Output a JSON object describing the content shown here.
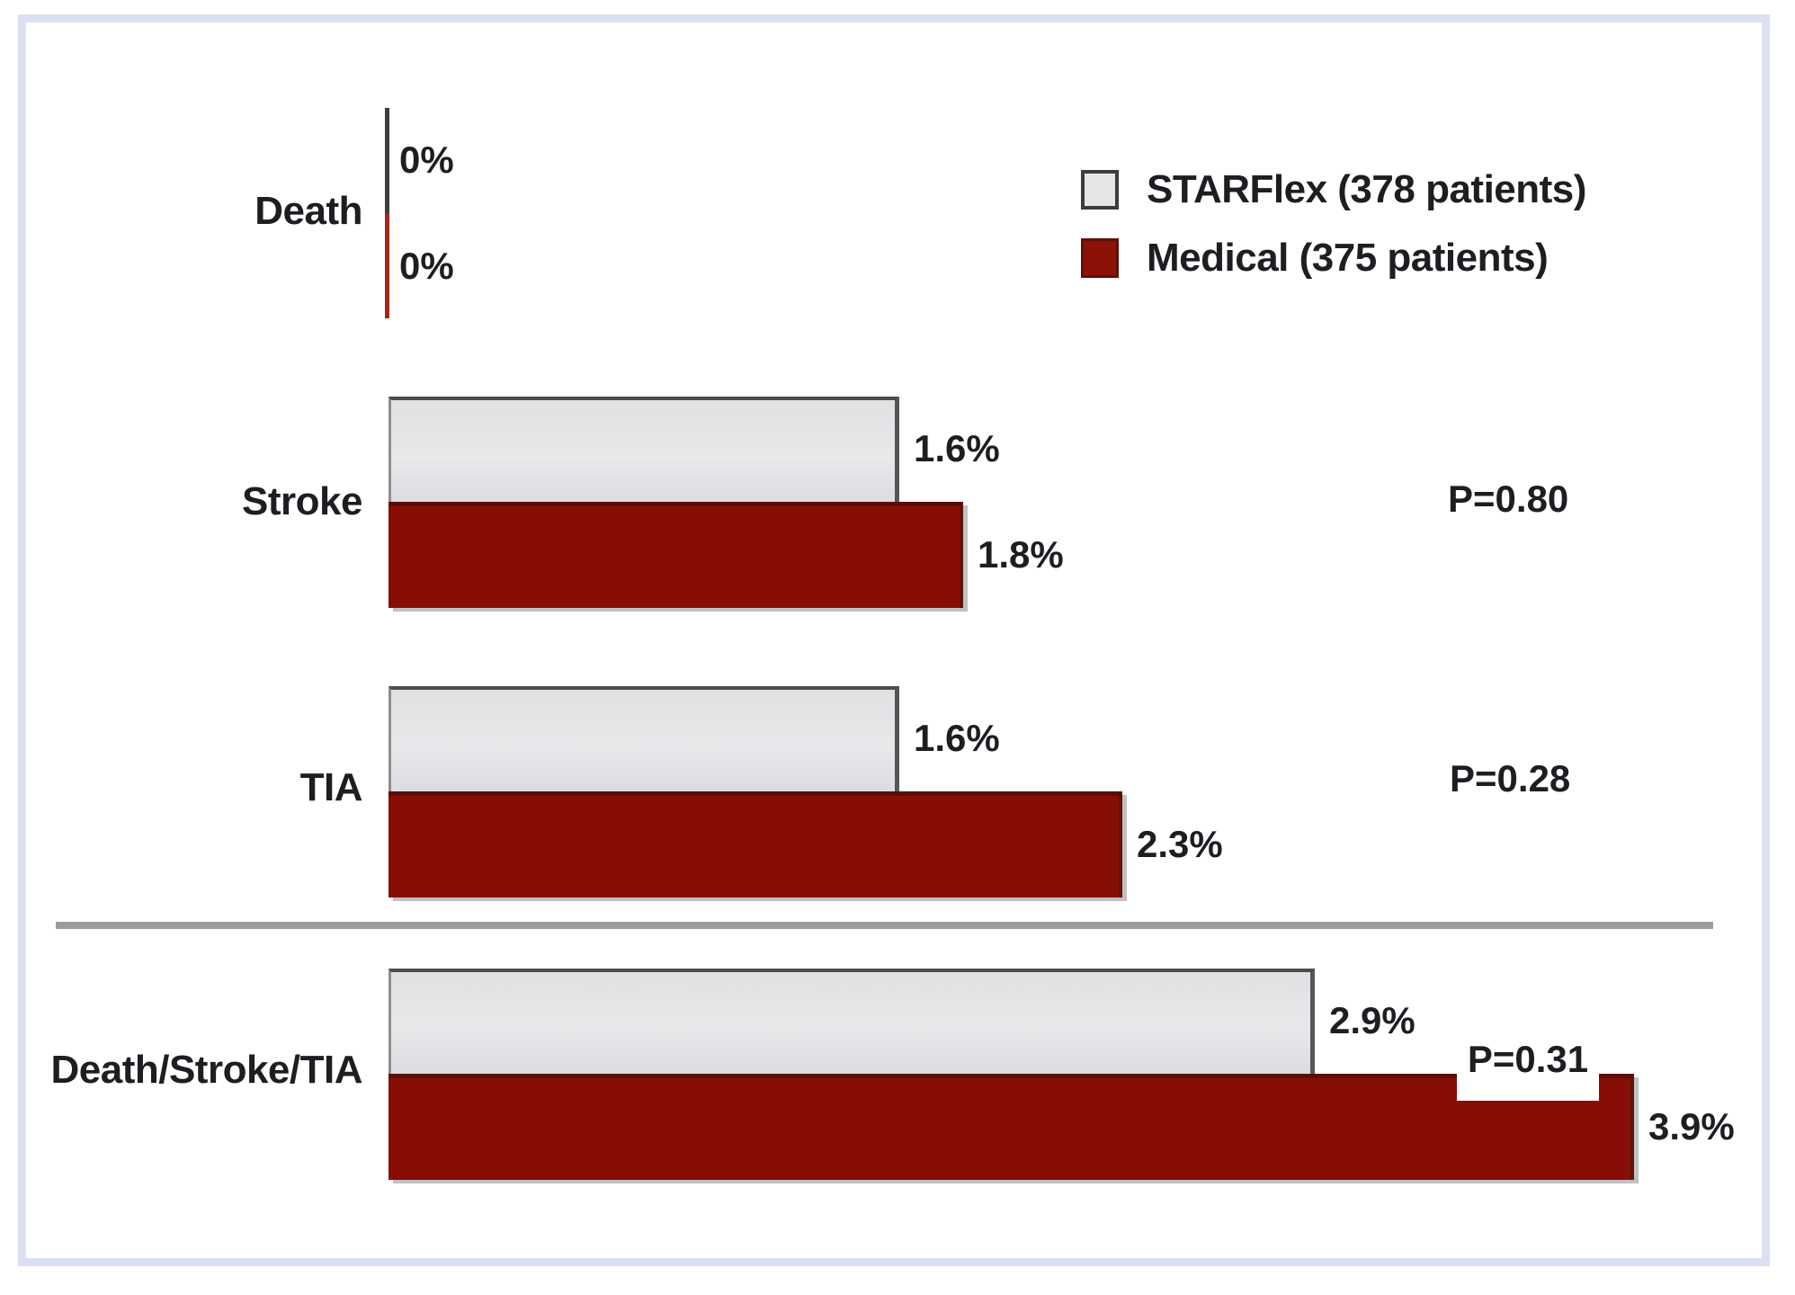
{
  "chart_data": {
    "type": "bar",
    "orientation": "horizontal",
    "categories": [
      "Death",
      "Stroke",
      "TIA",
      "Death/Stroke/TIA"
    ],
    "series": [
      {
        "name": "STARFlex (378 patients)",
        "values": [
          0,
          1.6,
          1.6,
          2.9
        ],
        "value_labels": [
          "0%",
          "1.6%",
          "1.6%",
          "2.9%"
        ],
        "color": "#e1e2e4"
      },
      {
        "name": "Medical (375 patients)",
        "values": [
          0,
          1.8,
          2.3,
          3.9
        ],
        "value_labels": [
          "0%",
          "1.8%",
          "2.3%",
          "3.9%"
        ],
        "color": "#870e05"
      }
    ],
    "p_values": [
      "",
      "P=0.80",
      "P=0.28",
      "P=0.31"
    ],
    "xlim": [
      0,
      4.4
    ],
    "grid": false,
    "legend_position": "top-right",
    "separator_after_category": "TIA"
  },
  "colors": {
    "starflex_fill": "#e1e2e4",
    "starflex_border": "#4c4c4e",
    "medical_fill": "#870e05",
    "medical_border": "#571009",
    "text": "#1d1e22",
    "separator_line": "#9b9b9d",
    "frame_border": "#dce0f2"
  }
}
